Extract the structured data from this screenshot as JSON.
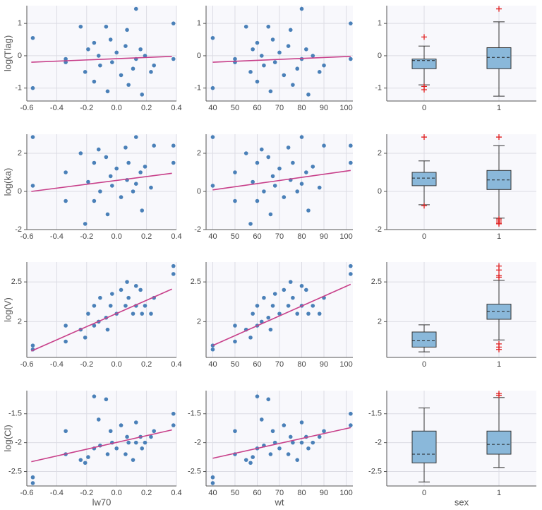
{
  "chart_data": [
    {
      "type": "scatter",
      "ylabel": "log(Tlag)",
      "xlim": [
        -0.6,
        0.4
      ],
      "xticks": [
        -0.6,
        -0.4,
        -0.2,
        {
          "value": 0,
          "label": "0.0"
        },
        0.2,
        0.4
      ],
      "ylim": [
        -1.4,
        1.55
      ],
      "yticks": [
        -1,
        0,
        1
      ],
      "color": "#4a80b8",
      "x": [
        -0.56,
        -0.56,
        -0.34,
        -0.34,
        -0.24,
        -0.21,
        -0.19,
        -0.15,
        -0.15,
        -0.12,
        -0.11,
        -0.07,
        -0.06,
        -0.04,
        -0.03,
        0,
        0.03,
        0.06,
        0.07,
        0.08,
        0.11,
        0.13,
        0.13,
        0.16,
        0.17,
        0.19,
        0.23,
        0.25,
        0.38,
        0.38
      ],
      "values": [
        0.55,
        -1.0,
        -0.1,
        -0.2,
        0.9,
        -0.5,
        0.2,
        -0.8,
        0.4,
        0.0,
        -0.3,
        0.9,
        -1.1,
        0.5,
        -0.2,
        0.1,
        -0.6,
        0.3,
        0.8,
        -0.9,
        -0.4,
        1.45,
        -0.1,
        0.2,
        -1.2,
        0.0,
        -0.5,
        -0.3,
        1.0,
        -0.1
      ],
      "trend": {
        "color": "#c8408a",
        "x": [
          -0.57,
          0.37
        ],
        "values": [
          -0.2,
          -0.02
        ]
      }
    },
    {
      "type": "scatter",
      "xlim": [
        37,
        103
      ],
      "xticks": [
        40,
        50,
        60,
        70,
        80,
        90,
        100
      ],
      "ylim": [
        -1.4,
        1.55
      ],
      "yticks": [
        -1,
        0,
        1
      ],
      "color": "#4a80b8",
      "x": [
        40,
        40,
        50,
        50,
        55,
        57,
        58,
        60,
        60,
        62,
        63,
        65,
        66,
        67,
        68,
        70,
        72,
        74,
        75,
        76,
        78,
        80,
        80,
        82,
        83,
        85,
        88,
        90,
        102,
        102
      ],
      "values": [
        0.55,
        -1.0,
        -0.1,
        -0.2,
        0.9,
        -0.5,
        0.2,
        -0.8,
        0.4,
        0.0,
        -0.3,
        0.9,
        -1.1,
        0.5,
        -0.2,
        0.1,
        -0.6,
        0.3,
        0.8,
        -0.9,
        -0.4,
        1.45,
        -0.1,
        0.2,
        -1.2,
        0.0,
        -0.5,
        -0.3,
        1.0,
        -0.1
      ],
      "trend": {
        "color": "#c8408a",
        "x": [
          40,
          102
        ],
        "values": [
          -0.2,
          -0.02
        ]
      }
    },
    {
      "type": "box",
      "categories": [
        "0",
        "1"
      ],
      "ylim": [
        -1.4,
        1.55
      ],
      "yticks": [
        -1,
        0,
        1
      ],
      "color": "#8ab8da",
      "boxes": [
        {
          "whislo": -0.9,
          "q1": -0.4,
          "med": -0.15,
          "q3": -0.1,
          "whishi": 0.3,
          "fliers": [
            0.58,
            -0.95,
            -1.05
          ]
        },
        {
          "whislo": -1.25,
          "q1": -0.4,
          "med": -0.05,
          "q3": 0.25,
          "whishi": 1.05,
          "fliers": [
            1.45
          ]
        }
      ]
    },
    {
      "type": "scatter",
      "ylabel": "log(ka)",
      "xlim": [
        -0.6,
        0.4
      ],
      "xticks": [
        -0.6,
        -0.4,
        -0.2,
        {
          "value": 0,
          "label": "0.0"
        },
        0.2,
        0.4
      ],
      "ylim": [
        -2,
        3
      ],
      "yticks": [
        -2,
        0,
        2
      ],
      "color": "#4a80b8",
      "x": [
        -0.56,
        -0.56,
        -0.34,
        -0.34,
        -0.24,
        -0.21,
        -0.19,
        -0.15,
        -0.15,
        -0.12,
        -0.11,
        -0.07,
        -0.06,
        -0.04,
        -0.03,
        0,
        0.03,
        0.06,
        0.07,
        0.08,
        0.11,
        0.13,
        0.13,
        0.16,
        0.17,
        0.19,
        0.23,
        0.25,
        0.38,
        0.38
      ],
      "values": [
        2.85,
        0.3,
        -0.5,
        1.0,
        2.0,
        -1.7,
        0.5,
        1.5,
        -0.5,
        2.2,
        0.0,
        1.8,
        -1.2,
        0.8,
        0.3,
        1.2,
        -0.3,
        2.3,
        0.6,
        1.5,
        0.0,
        2.85,
        0.4,
        1.0,
        -1.0,
        1.3,
        0.2,
        2.4,
        2.4,
        1.5
      ],
      "trend": {
        "color": "#c8408a",
        "x": [
          -0.57,
          0.37
        ],
        "values": [
          0.0,
          0.95
        ]
      }
    },
    {
      "type": "scatter",
      "xlim": [
        37,
        103
      ],
      "xticks": [
        40,
        50,
        60,
        70,
        80,
        90,
        100
      ],
      "ylim": [
        -2,
        3
      ],
      "yticks": [
        -2,
        0,
        2
      ],
      "color": "#4a80b8",
      "x": [
        40,
        40,
        50,
        50,
        55,
        57,
        58,
        60,
        60,
        62,
        63,
        65,
        66,
        67,
        68,
        70,
        72,
        74,
        75,
        76,
        78,
        80,
        80,
        82,
        83,
        85,
        88,
        90,
        102,
        102
      ],
      "values": [
        2.85,
        0.3,
        -0.5,
        1.0,
        2.0,
        -1.7,
        0.5,
        1.5,
        -0.5,
        2.2,
        0.0,
        1.8,
        -1.2,
        0.8,
        0.3,
        1.2,
        -0.3,
        2.3,
        0.6,
        1.5,
        0.0,
        2.85,
        0.4,
        1.0,
        -1.0,
        1.3,
        0.2,
        2.4,
        2.4,
        1.5
      ],
      "trend": {
        "color": "#c8408a",
        "x": [
          40,
          102
        ],
        "values": [
          0.08,
          1.1
        ]
      }
    },
    {
      "type": "box",
      "categories": [
        "0",
        "1"
      ],
      "ylim": [
        -2,
        3
      ],
      "yticks": [
        -2,
        0,
        2
      ],
      "color": "#8ab8da",
      "boxes": [
        {
          "whislo": -0.7,
          "q1": 0.3,
          "med": 0.7,
          "q3": 1.0,
          "whishi": 1.6,
          "fliers": [
            2.85,
            -0.75
          ]
        },
        {
          "whislo": -1.4,
          "q1": 0.1,
          "med": 0.6,
          "q3": 1.1,
          "whishi": 2.4,
          "fliers": [
            2.85,
            -1.45,
            -1.55,
            -1.65,
            -1.7
          ]
        }
      ]
    },
    {
      "type": "scatter",
      "ylabel": "log(V)",
      "xlim": [
        -0.6,
        0.4
      ],
      "xticks": [
        -0.6,
        -0.4,
        -0.2,
        {
          "value": 0,
          "label": "0.0"
        },
        0.2,
        0.4
      ],
      "ylim": [
        1.55,
        2.75
      ],
      "yticks": [
        2,
        2.5
      ],
      "color": "#4a80b8",
      "x": [
        -0.56,
        -0.56,
        -0.34,
        -0.34,
        -0.24,
        -0.21,
        -0.19,
        -0.15,
        -0.15,
        -0.12,
        -0.11,
        -0.07,
        -0.06,
        -0.04,
        -0.03,
        0,
        0.03,
        0.06,
        0.07,
        0.08,
        0.11,
        0.13,
        0.13,
        0.16,
        0.17,
        0.19,
        0.23,
        0.25,
        0.38,
        0.38
      ],
      "values": [
        1.65,
        1.7,
        1.75,
        1.95,
        1.9,
        1.8,
        2.1,
        1.95,
        2.2,
        2.0,
        2.3,
        2.05,
        1.9,
        2.2,
        2.35,
        2.1,
        2.4,
        2.2,
        2.5,
        2.3,
        2.1,
        2.45,
        2.2,
        2.4,
        2.1,
        2.2,
        2.1,
        2.3,
        2.7,
        2.6
      ],
      "trend": {
        "color": "#c8408a",
        "x": [
          -0.57,
          0.37
        ],
        "values": [
          1.63,
          2.41
        ]
      }
    },
    {
      "type": "scatter",
      "xlim": [
        37,
        103
      ],
      "xticks": [
        40,
        50,
        60,
        70,
        80,
        90,
        100
      ],
      "ylim": [
        1.55,
        2.75
      ],
      "yticks": [
        2,
        2.5
      ],
      "color": "#4a80b8",
      "x": [
        40,
        40,
        50,
        50,
        55,
        57,
        58,
        60,
        60,
        62,
        63,
        65,
        66,
        67,
        68,
        70,
        72,
        74,
        75,
        76,
        78,
        80,
        80,
        82,
        83,
        85,
        88,
        90,
        102,
        102
      ],
      "values": [
        1.65,
        1.7,
        1.75,
        1.95,
        1.9,
        1.8,
        2.1,
        1.95,
        2.2,
        2.0,
        2.3,
        2.05,
        1.9,
        2.2,
        2.35,
        2.1,
        2.4,
        2.2,
        2.5,
        2.3,
        2.1,
        2.45,
        2.2,
        2.4,
        2.1,
        2.2,
        2.1,
        2.3,
        2.7,
        2.6
      ],
      "trend": {
        "color": "#c8408a",
        "x": [
          40,
          102
        ],
        "values": [
          1.7,
          2.47
        ]
      }
    },
    {
      "type": "box",
      "categories": [
        "0",
        "1"
      ],
      "ylim": [
        1.55,
        2.75
      ],
      "yticks": [
        2,
        2.5
      ],
      "color": "#8ab8da",
      "boxes": [
        {
          "whislo": 1.62,
          "q1": 1.68,
          "med": 1.76,
          "q3": 1.87,
          "whishi": 1.96,
          "fliers": []
        },
        {
          "whislo": 1.77,
          "q1": 2.03,
          "med": 2.13,
          "q3": 2.22,
          "whishi": 2.52,
          "fliers": [
            2.7,
            2.65,
            2.58,
            2.56,
            1.72,
            1.68,
            1.65
          ]
        }
      ]
    },
    {
      "type": "scatter",
      "ylabel": "log(Cl)",
      "xlabel": "lw70",
      "xlim": [
        -0.6,
        0.4
      ],
      "xticks": [
        -0.6,
        -0.4,
        -0.2,
        {
          "value": 0,
          "label": "0.0"
        },
        0.2,
        0.4
      ],
      "ylim": [
        -2.75,
        -1.1
      ],
      "yticks": [
        -2.5,
        -2,
        -1.5
      ],
      "color": "#4a80b8",
      "x": [
        -0.56,
        -0.56,
        -0.34,
        -0.34,
        -0.24,
        -0.21,
        -0.19,
        -0.15,
        -0.15,
        -0.12,
        -0.11,
        -0.07,
        -0.06,
        -0.04,
        -0.03,
        0,
        0.03,
        0.06,
        0.07,
        0.08,
        0.11,
        0.13,
        0.13,
        0.16,
        0.17,
        0.19,
        0.23,
        0.25,
        0.38,
        0.38
      ],
      "values": [
        -2.6,
        -2.7,
        -2.2,
        -1.8,
        -2.3,
        -2.35,
        -2.25,
        -1.2,
        -2.1,
        -1.6,
        -2.05,
        -1.25,
        -2.2,
        -1.8,
        -2.0,
        -2.1,
        -1.7,
        -2.2,
        -1.9,
        -2.0,
        -2.3,
        -1.65,
        -2.0,
        -1.9,
        -2.1,
        -2.0,
        -1.9,
        -1.8,
        -1.5,
        -1.7
      ],
      "trend": {
        "color": "#c8408a",
        "x": [
          -0.57,
          0.37
        ],
        "values": [
          -2.33,
          -1.78
        ]
      }
    },
    {
      "type": "scatter",
      "xlabel": "wt",
      "xlim": [
        37,
        103
      ],
      "xticks": [
        40,
        50,
        60,
        70,
        80,
        90,
        100
      ],
      "ylim": [
        -2.75,
        -1.1
      ],
      "yticks": [
        -2.5,
        -2,
        -1.5
      ],
      "color": "#4a80b8",
      "x": [
        40,
        40,
        50,
        50,
        55,
        57,
        58,
        60,
        60,
        62,
        63,
        65,
        66,
        67,
        68,
        70,
        72,
        74,
        75,
        76,
        78,
        80,
        80,
        82,
        83,
        85,
        88,
        90,
        102,
        102
      ],
      "values": [
        -2.6,
        -2.7,
        -2.2,
        -1.8,
        -2.3,
        -2.35,
        -2.25,
        -1.2,
        -2.1,
        -1.6,
        -2.05,
        -1.25,
        -2.2,
        -1.8,
        -2.0,
        -2.1,
        -1.7,
        -2.2,
        -1.9,
        -2.0,
        -2.3,
        -1.65,
        -2.0,
        -1.9,
        -2.1,
        -2.0,
        -1.9,
        -1.8,
        -1.5,
        -1.7
      ],
      "trend": {
        "color": "#c8408a",
        "x": [
          40,
          102
        ],
        "values": [
          -2.27,
          -1.74
        ]
      }
    },
    {
      "type": "box",
      "xlabel": "sex",
      "categories": [
        "0",
        "1"
      ],
      "ylim": [
        -2.75,
        -1.1
      ],
      "yticks": [
        -2.5,
        -2,
        -1.5
      ],
      "color": "#8ab8da",
      "boxes": [
        {
          "whislo": -2.68,
          "q1": -2.35,
          "med": -2.2,
          "q3": -1.8,
          "whishi": -1.4,
          "fliers": []
        },
        {
          "whislo": -2.43,
          "q1": -2.2,
          "med": -2.03,
          "q3": -1.8,
          "whishi": -1.22,
          "fliers": [
            -1.15,
            -1.18
          ]
        }
      ]
    }
  ]
}
